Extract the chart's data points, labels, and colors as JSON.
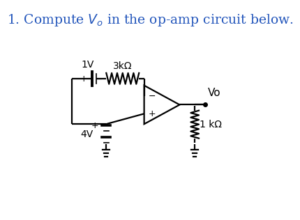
{
  "title_text": "1. Compute $V_o$ in the op-amp circuit below.",
  "title_color": "#2255bb",
  "title_fontsize": 13.5,
  "bg_color": "#ffffff",
  "lc": "#000000",
  "lw": 1.6,
  "label_1V": "1V",
  "label_3k": "3kΩ",
  "label_4V": "4V",
  "label_1k": "1 kΩ",
  "label_Vo": "Vo",
  "bat1_plus": "+",
  "bat1_minus": "−",
  "bat4_plus": "+",
  "opamp_minus": "−",
  "opamp_plus": "+"
}
